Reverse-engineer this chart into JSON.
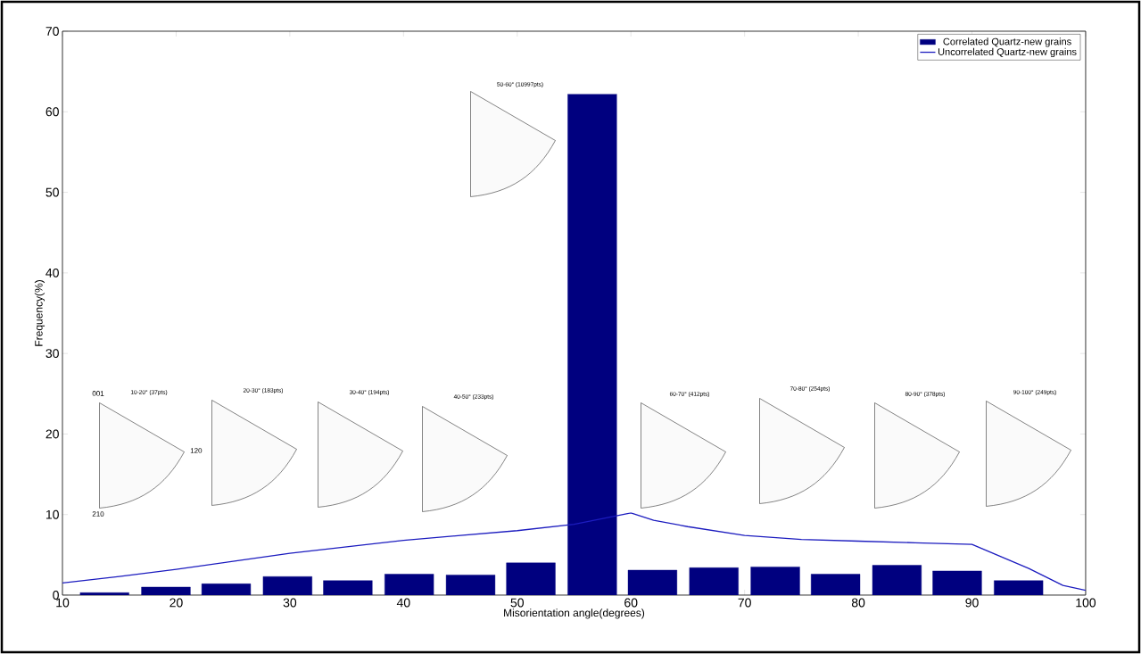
{
  "chart_data": {
    "type": "bar",
    "xlabel": "Misorientation angle(degrees)",
    "ylabel": "Frequency(%)",
    "xlim": [
      10,
      100
    ],
    "ylim": [
      0,
      70
    ],
    "xticks": [
      10,
      20,
      30,
      40,
      50,
      60,
      70,
      80,
      90,
      100
    ],
    "yticks": [
      0,
      10,
      20,
      30,
      40,
      50,
      60,
      70
    ],
    "legend": "top right",
    "series": [
      {
        "name": "Correlated Quartz-new grains",
        "color": "#00007f",
        "x": [
          13.7,
          19.1,
          24.4,
          29.8,
          35.1,
          40.5,
          45.9,
          51.2,
          56.6,
          61.9,
          67.3,
          72.7,
          78.0,
          83.4,
          88.7,
          94.1
        ],
        "values": [
          0.3,
          1.0,
          1.4,
          2.3,
          1.8,
          2.6,
          2.5,
          4.0,
          62.2,
          3.1,
          3.4,
          3.5,
          2.6,
          3.7,
          3.0,
          1.8
        ]
      },
      {
        "name": "Uncorrelated Quartz-new grains",
        "type": "line",
        "color": "#1c1cbf",
        "x": [
          10,
          15,
          20,
          25,
          30,
          35,
          40,
          45,
          50,
          55,
          60,
          62,
          65,
          70,
          75,
          80,
          85,
          90,
          95,
          98,
          100
        ],
        "values": [
          1.5,
          2.3,
          3.2,
          4.2,
          5.2,
          6.0,
          6.8,
          7.4,
          8.0,
          8.8,
          10.2,
          9.3,
          8.5,
          7.4,
          6.9,
          6.7,
          6.5,
          6.3,
          3.3,
          1.2,
          0.6
        ]
      }
    ],
    "annotations": [
      "10-20° (37pts)",
      "20-30° (183pts)",
      "30-40° (194pts)",
      "40-50° (233pts)",
      "50-60° (10997pts)",
      "60-70° (412pts)",
      "70-80° (254pts)",
      "80-90° (378pts)",
      "90-100° (249pts)",
      "001",
      "120",
      "210"
    ]
  }
}
